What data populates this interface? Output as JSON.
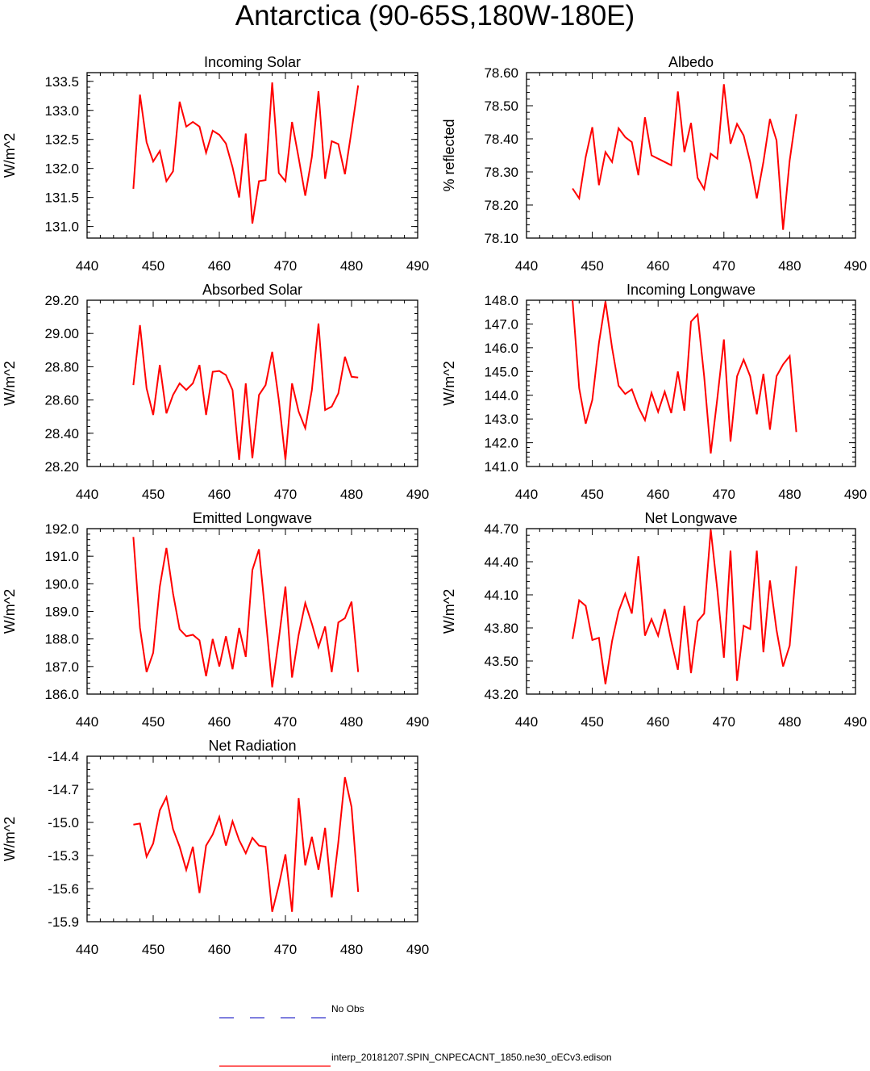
{
  "title": "Antarctica (90-65S,180W-180E)",
  "colors": {
    "series": "#ff0000",
    "obs": "#3333cc",
    "axis": "#000000"
  },
  "legend": {
    "items": [
      {
        "label": "No Obs",
        "style": "dashed",
        "color": "#3333cc"
      },
      {
        "label": "interp_20181207.SPIN_CNPECACNT_1850.ne30_oECv3.edison",
        "style": "solid",
        "color": "#ff0000"
      }
    ]
  },
  "chart_data": [
    {
      "type": "line",
      "title": "Incoming Solar",
      "ylabel": "W/m^2",
      "xlim": [
        440,
        490
      ],
      "ylim": [
        130.8,
        133.65
      ],
      "xticks": [
        "440",
        "450",
        "460",
        "470",
        "480",
        "490"
      ],
      "yticks": [
        "131.0",
        "131.5",
        "132.0",
        "132.5",
        "133.0",
        "133.5"
      ],
      "x": [
        447,
        448,
        449,
        450,
        451,
        452,
        453,
        454,
        455,
        456,
        457,
        458,
        459,
        460,
        461,
        462,
        463,
        464,
        465,
        466,
        467,
        468,
        469,
        470,
        471,
        472,
        473,
        474,
        475,
        476,
        477,
        478,
        479,
        480,
        481
      ],
      "values": [
        131.65,
        133.27,
        132.45,
        132.12,
        132.3,
        131.78,
        131.95,
        133.15,
        132.72,
        132.8,
        132.72,
        132.27,
        132.65,
        132.58,
        132.43,
        132.02,
        131.5,
        132.6,
        131.05,
        131.78,
        131.8,
        133.48,
        131.92,
        131.78,
        132.8,
        132.18,
        131.53,
        132.2,
        133.33,
        131.82,
        132.47,
        132.42,
        131.9,
        132.65,
        133.43
      ]
    },
    {
      "type": "line",
      "title": "Albedo",
      "ylabel": "% reflected",
      "xlim": [
        440,
        490
      ],
      "ylim": [
        78.1,
        78.6
      ],
      "xticks": [
        "440",
        "450",
        "460",
        "470",
        "480",
        "490"
      ],
      "yticks": [
        "78.10",
        "78.20",
        "78.30",
        "78.40",
        "78.50",
        "78.60"
      ],
      "x": [
        447,
        448,
        449,
        450,
        451,
        452,
        453,
        454,
        455,
        456,
        457,
        458,
        459,
        460,
        461,
        462,
        463,
        464,
        465,
        466,
        467,
        468,
        469,
        470,
        471,
        472,
        473,
        474,
        475,
        476,
        477,
        478,
        479,
        480,
        481
      ],
      "values": [
        78.25,
        78.22,
        78.345,
        78.435,
        78.26,
        78.36,
        78.33,
        78.432,
        78.405,
        78.39,
        78.29,
        78.465,
        78.35,
        78.34,
        78.33,
        78.32,
        78.543,
        78.36,
        78.448,
        78.282,
        78.248,
        78.355,
        78.34,
        78.565,
        78.385,
        78.445,
        78.41,
        78.33,
        78.22,
        78.33,
        78.46,
        78.395,
        78.125,
        78.335,
        78.475
      ]
    },
    {
      "type": "line",
      "title": "Absorbed Solar",
      "ylabel": "W/m^2",
      "xlim": [
        440,
        490
      ],
      "ylim": [
        28.2,
        29.2
      ],
      "xticks": [
        "440",
        "450",
        "460",
        "470",
        "480",
        "490"
      ],
      "yticks": [
        "28.20",
        "28.40",
        "28.60",
        "28.80",
        "29.00",
        "29.20"
      ],
      "x": [
        447,
        448,
        449,
        450,
        451,
        452,
        453,
        454,
        455,
        456,
        457,
        458,
        459,
        460,
        461,
        462,
        463,
        464,
        465,
        466,
        467,
        468,
        469,
        470,
        471,
        472,
        473,
        474,
        475,
        476,
        477,
        478,
        479,
        480,
        481
      ],
      "values": [
        28.69,
        29.05,
        28.67,
        28.51,
        28.81,
        28.52,
        28.63,
        28.7,
        28.66,
        28.7,
        28.81,
        28.51,
        28.77,
        28.775,
        28.75,
        28.66,
        28.24,
        28.7,
        28.25,
        28.63,
        28.69,
        28.89,
        28.6,
        28.24,
        28.7,
        28.53,
        28.43,
        28.66,
        29.06,
        28.54,
        28.56,
        28.64,
        28.86,
        28.74,
        28.735
      ]
    },
    {
      "type": "line",
      "title": "Incoming Longwave",
      "ylabel": "W/m^2",
      "xlim": [
        440,
        490
      ],
      "ylim": [
        141.0,
        148.0
      ],
      "xticks": [
        "440",
        "450",
        "460",
        "470",
        "480",
        "490"
      ],
      "yticks": [
        "141.0",
        "142.0",
        "143.0",
        "144.0",
        "145.0",
        "146.0",
        "147.0",
        "148.0"
      ],
      "x": [
        447,
        448,
        449,
        450,
        451,
        452,
        453,
        454,
        455,
        456,
        457,
        458,
        459,
        460,
        461,
        462,
        463,
        464,
        465,
        466,
        467,
        468,
        469,
        470,
        471,
        472,
        473,
        474,
        475,
        476,
        477,
        478,
        479,
        480,
        481
      ],
      "values": [
        148.0,
        144.3,
        142.8,
        143.8,
        146.2,
        147.95,
        146.0,
        144.4,
        144.05,
        144.25,
        143.5,
        142.95,
        144.1,
        143.3,
        144.15,
        143.25,
        145.0,
        143.35,
        147.1,
        147.4,
        144.8,
        141.55,
        143.85,
        146.35,
        142.05,
        144.8,
        145.5,
        144.8,
        143.2,
        144.9,
        142.55,
        144.8,
        145.3,
        145.65,
        142.45
      ]
    },
    {
      "type": "line",
      "title": "Emitted Longwave",
      "ylabel": "W/m^2",
      "xlim": [
        440,
        490
      ],
      "ylim": [
        186.0,
        192.0
      ],
      "xticks": [
        "440",
        "450",
        "460",
        "470",
        "480",
        "490"
      ],
      "yticks": [
        "186.0",
        "187.0",
        "188.0",
        "189.0",
        "190.0",
        "191.0",
        "192.0"
      ],
      "x": [
        447,
        448,
        449,
        450,
        451,
        452,
        453,
        454,
        455,
        456,
        457,
        458,
        459,
        460,
        461,
        462,
        463,
        464,
        465,
        466,
        467,
        468,
        469,
        470,
        471,
        472,
        473,
        474,
        475,
        476,
        477,
        478,
        479,
        480,
        481
      ],
      "values": [
        191.7,
        188.4,
        186.8,
        187.5,
        189.9,
        191.3,
        189.65,
        188.35,
        188.1,
        188.15,
        187.95,
        186.65,
        188.0,
        187.0,
        188.1,
        186.9,
        188.4,
        187.35,
        190.5,
        191.25,
        188.8,
        186.25,
        188.0,
        189.9,
        186.6,
        188.15,
        189.3,
        188.55,
        187.7,
        188.45,
        186.8,
        188.6,
        188.75,
        189.35,
        186.8
      ]
    },
    {
      "type": "line",
      "title": "Net Longwave",
      "ylabel": "W/m^2",
      "xlim": [
        440,
        490
      ],
      "ylim": [
        43.2,
        44.7
      ],
      "xticks": [
        "440",
        "450",
        "460",
        "470",
        "480",
        "490"
      ],
      "yticks": [
        "43.20",
        "43.50",
        "43.80",
        "44.10",
        "44.40",
        "44.70"
      ],
      "x": [
        447,
        448,
        449,
        450,
        451,
        452,
        453,
        454,
        455,
        456,
        457,
        458,
        459,
        460,
        461,
        462,
        463,
        464,
        465,
        466,
        467,
        468,
        469,
        470,
        471,
        472,
        473,
        474,
        475,
        476,
        477,
        478,
        479,
        480,
        481
      ],
      "values": [
        43.7,
        44.05,
        44.0,
        43.69,
        43.71,
        43.29,
        43.68,
        43.95,
        44.11,
        43.93,
        44.45,
        43.73,
        43.88,
        43.73,
        43.97,
        43.68,
        43.42,
        44.0,
        43.39,
        43.86,
        43.93,
        44.69,
        44.15,
        43.53,
        44.5,
        43.32,
        43.82,
        43.79,
        44.5,
        43.58,
        44.23,
        43.78,
        43.45,
        43.64,
        44.36
      ]
    },
    {
      "type": "line",
      "title": "Net Radiation",
      "ylabel": "W/m^2",
      "xlim": [
        440,
        490
      ],
      "ylim": [
        -15.9,
        -14.4
      ],
      "xticks": [
        "440",
        "450",
        "460",
        "470",
        "480",
        "490"
      ],
      "yticks": [
        "-15.9",
        "-15.6",
        "-15.3",
        "-15.0",
        "-14.7",
        "-14.4"
      ],
      "x": [
        447,
        448,
        449,
        450,
        451,
        452,
        453,
        454,
        455,
        456,
        457,
        458,
        459,
        460,
        461,
        462,
        463,
        464,
        465,
        466,
        467,
        468,
        469,
        470,
        471,
        472,
        473,
        474,
        475,
        476,
        477,
        478,
        479,
        480,
        481
      ],
      "values": [
        -15.02,
        -15.01,
        -15.31,
        -15.19,
        -14.89,
        -14.77,
        -15.06,
        -15.22,
        -15.43,
        -15.22,
        -15.64,
        -15.21,
        -15.11,
        -14.95,
        -15.21,
        -14.99,
        -15.16,
        -15.28,
        -15.14,
        -15.21,
        -15.22,
        -15.81,
        -15.57,
        -15.29,
        -15.81,
        -14.78,
        -15.39,
        -15.13,
        -15.43,
        -15.05,
        -15.68,
        -15.18,
        -14.59,
        -14.86,
        -15.63
      ]
    }
  ]
}
